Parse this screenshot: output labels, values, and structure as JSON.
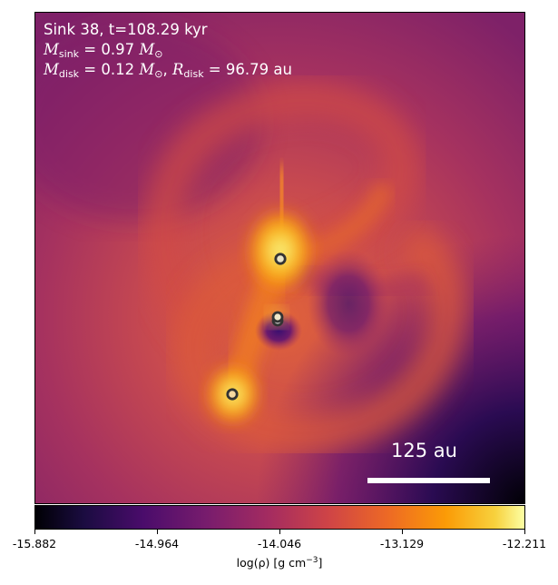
{
  "annotation": {
    "line1": "Sink 38, t=108.29 kyr",
    "mass_sym": "M",
    "mass_sub": "sink",
    "mass_val": " = 0.97",
    "mass_unit": "M",
    "mass_unit_sub": "⊙",
    "mdisk_sym": "M",
    "mdisk_sub": "disk",
    "mdisk_val": " = 0.12",
    "mdisk_unit": "M",
    "mdisk_unit_sub": "⊙",
    "rdisk_sep": ", ",
    "rdisk_sym": "R",
    "rdisk_sub": "disk",
    "rdisk_val": " = 96.79 au"
  },
  "scale_bar": {
    "label": "125 au"
  },
  "colorbar": {
    "ticks": [
      "-15.882",
      "-14.964",
      "-14.046",
      "-13.129",
      "-12.211"
    ],
    "label_main": "log(ρ) [g cm",
    "label_sup": "−3",
    "label_end": "]",
    "colormap": "inferno"
  },
  "sinks": {
    "count": 4,
    "color": "#333333"
  }
}
